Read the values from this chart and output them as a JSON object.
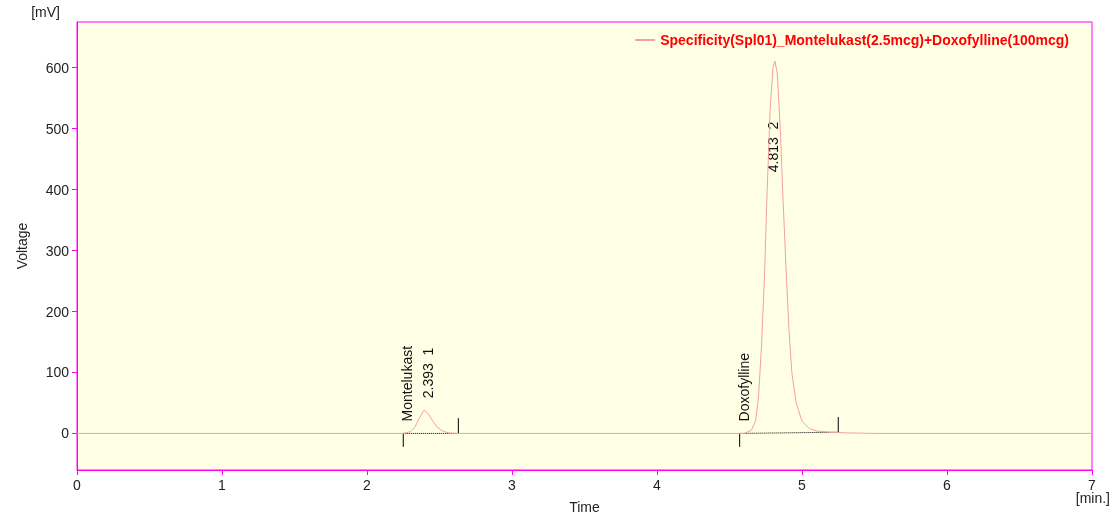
{
  "chart_data": {
    "type": "line",
    "xlabel": "Time",
    "ylabel": "Voltage",
    "xlim": [
      0,
      7
    ],
    "xticks": [
      0,
      1,
      2,
      3,
      4,
      5,
      6,
      7
    ],
    "ylim": [
      -60,
      675
    ],
    "yticks": [
      0,
      100,
      200,
      300,
      400,
      500,
      600
    ],
    "grid": false,
    "legend": "top right",
    "marker": "none",
    "series": [
      {
        "name": "Specificity(Spl01)_Montelukast(2.5mcg)+Doxofylline(100mcg)",
        "color": "#f4a0a0",
        "line_style": "solid",
        "x": [
          0,
          1,
          2,
          2.25,
          2.3,
          2.33,
          2.36,
          2.393,
          2.42,
          2.45,
          2.48,
          2.52,
          2.56,
          2.62,
          3,
          4,
          4.6,
          4.65,
          4.68,
          4.7,
          4.72,
          4.74,
          4.76,
          4.78,
          4.8,
          4.813,
          4.83,
          4.85,
          4.87,
          4.89,
          4.91,
          4.93,
          4.96,
          5.0,
          5.05,
          5.1,
          5.2,
          5.3,
          5.5,
          6,
          7
        ],
        "values": [
          0,
          0,
          0,
          0,
          3,
          10,
          25,
          38,
          33,
          22,
          11,
          4,
          1,
          0,
          0,
          0,
          0,
          5,
          20,
          60,
          140,
          250,
          400,
          530,
          600,
          611,
          590,
          500,
          380,
          270,
          170,
          100,
          50,
          20,
          8,
          4,
          2,
          1,
          0,
          0,
          0
        ]
      },
      {
        "color": "#000000",
        "line_style": "dotted",
        "x": [
          2.25,
          2.63
        ],
        "values": [
          0,
          0
        ]
      },
      {
        "color": "#000000",
        "line_style": "solid",
        "x": [
          2.25,
          2.25
        ],
        "values": [
          -22,
          0
        ]
      },
      {
        "color": "#000000",
        "line_style": "solid",
        "x": [
          2.63,
          2.63
        ],
        "values": [
          0,
          25
        ]
      },
      {
        "color": "#000000",
        "line_style": "dotted",
        "x": [
          4.57,
          5.25
        ],
        "values": [
          0,
          2
        ]
      },
      {
        "color": "#000000",
        "line_style": "solid",
        "x": [
          4.57,
          4.57
        ],
        "values": [
          -22,
          0
        ]
      },
      {
        "color": "#000000",
        "line_style": "solid",
        "x": [
          5.25,
          5.25
        ],
        "values": [
          2,
          27
        ]
      }
    ],
    "annotations": [
      {
        "text": "Montelukast",
        "x": 2.25,
        "y": 0
      },
      {
        "text": "2.393  1",
        "x": 2.393,
        "y": 38
      },
      {
        "text": "Doxofylline",
        "x": 4.57,
        "y": 0
      },
      {
        "text": "4.813  2",
        "x": 4.77,
        "y": 470
      },
      "[mV]",
      "[min.]"
    ]
  }
}
